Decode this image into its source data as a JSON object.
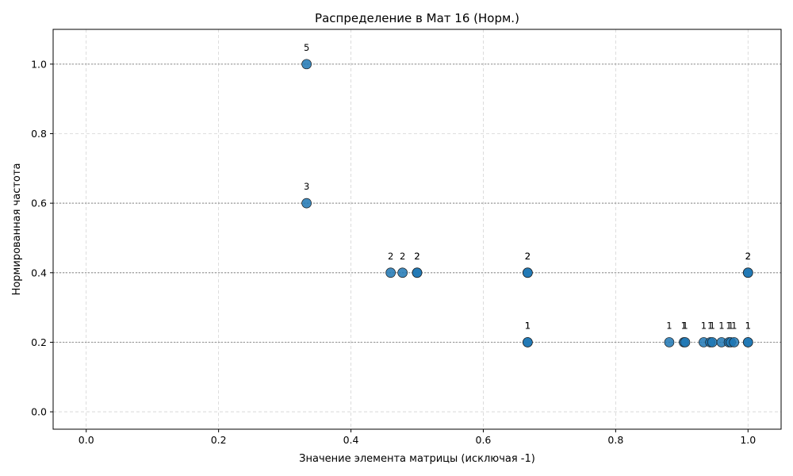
{
  "chart_data": {
    "type": "scatter",
    "title": "Распределение в Мат 16 (Норм.)",
    "xlabel": "Значение элемента матрицы (исключая -1)",
    "ylabel": "Нормированная частота",
    "xlim": [
      -0.05,
      1.05
    ],
    "ylim": [
      -0.05,
      1.1
    ],
    "xticks": [
      "0.0",
      "0.2",
      "0.4",
      "0.6",
      "0.8",
      "1.0"
    ],
    "yticks": [
      "0.0",
      "0.2",
      "0.4",
      "0.6",
      "0.8",
      "1.0"
    ],
    "xtick_values": [
      0.0,
      0.2,
      0.4,
      0.6,
      0.8,
      1.0
    ],
    "ytick_values": [
      0.0,
      0.2,
      0.4,
      0.6,
      0.8,
      1.0
    ],
    "grid": true,
    "reference_lines_y": [
      0.2,
      0.4,
      0.6,
      1.0
    ],
    "marker_color": "#1f77b4",
    "points": [
      {
        "x": 0.333,
        "y": 1.0,
        "label": "5"
      },
      {
        "x": 0.333,
        "y": 0.6,
        "label": "3"
      },
      {
        "x": 0.46,
        "y": 0.4,
        "label": "2"
      },
      {
        "x": 0.478,
        "y": 0.4,
        "label": "2"
      },
      {
        "x": 0.5,
        "y": 0.4,
        "label": "2"
      },
      {
        "x": 0.5,
        "y": 0.4,
        "label": "2"
      },
      {
        "x": 0.667,
        "y": 0.4,
        "label": "2"
      },
      {
        "x": 0.667,
        "y": 0.4,
        "label": "2"
      },
      {
        "x": 1.0,
        "y": 0.4,
        "label": "2"
      },
      {
        "x": 1.0,
        "y": 0.4,
        "label": "2"
      },
      {
        "x": 0.667,
        "y": 0.2,
        "label": "1"
      },
      {
        "x": 0.667,
        "y": 0.2,
        "label": "1"
      },
      {
        "x": 0.881,
        "y": 0.2,
        "label": "1"
      },
      {
        "x": 0.903,
        "y": 0.2,
        "label": "1"
      },
      {
        "x": 0.905,
        "y": 0.2,
        "label": "1"
      },
      {
        "x": 0.933,
        "y": 0.2,
        "label": "1"
      },
      {
        "x": 0.943,
        "y": 0.2,
        "label": "1"
      },
      {
        "x": 0.946,
        "y": 0.2,
        "label": "1"
      },
      {
        "x": 0.96,
        "y": 0.2,
        "label": "1"
      },
      {
        "x": 0.971,
        "y": 0.2,
        "label": "1"
      },
      {
        "x": 0.974,
        "y": 0.2,
        "label": "1"
      },
      {
        "x": 0.979,
        "y": 0.2,
        "label": "1"
      },
      {
        "x": 1.0,
        "y": 0.2,
        "label": "1"
      },
      {
        "x": 1.0,
        "y": 0.2,
        "label": "1"
      }
    ]
  }
}
